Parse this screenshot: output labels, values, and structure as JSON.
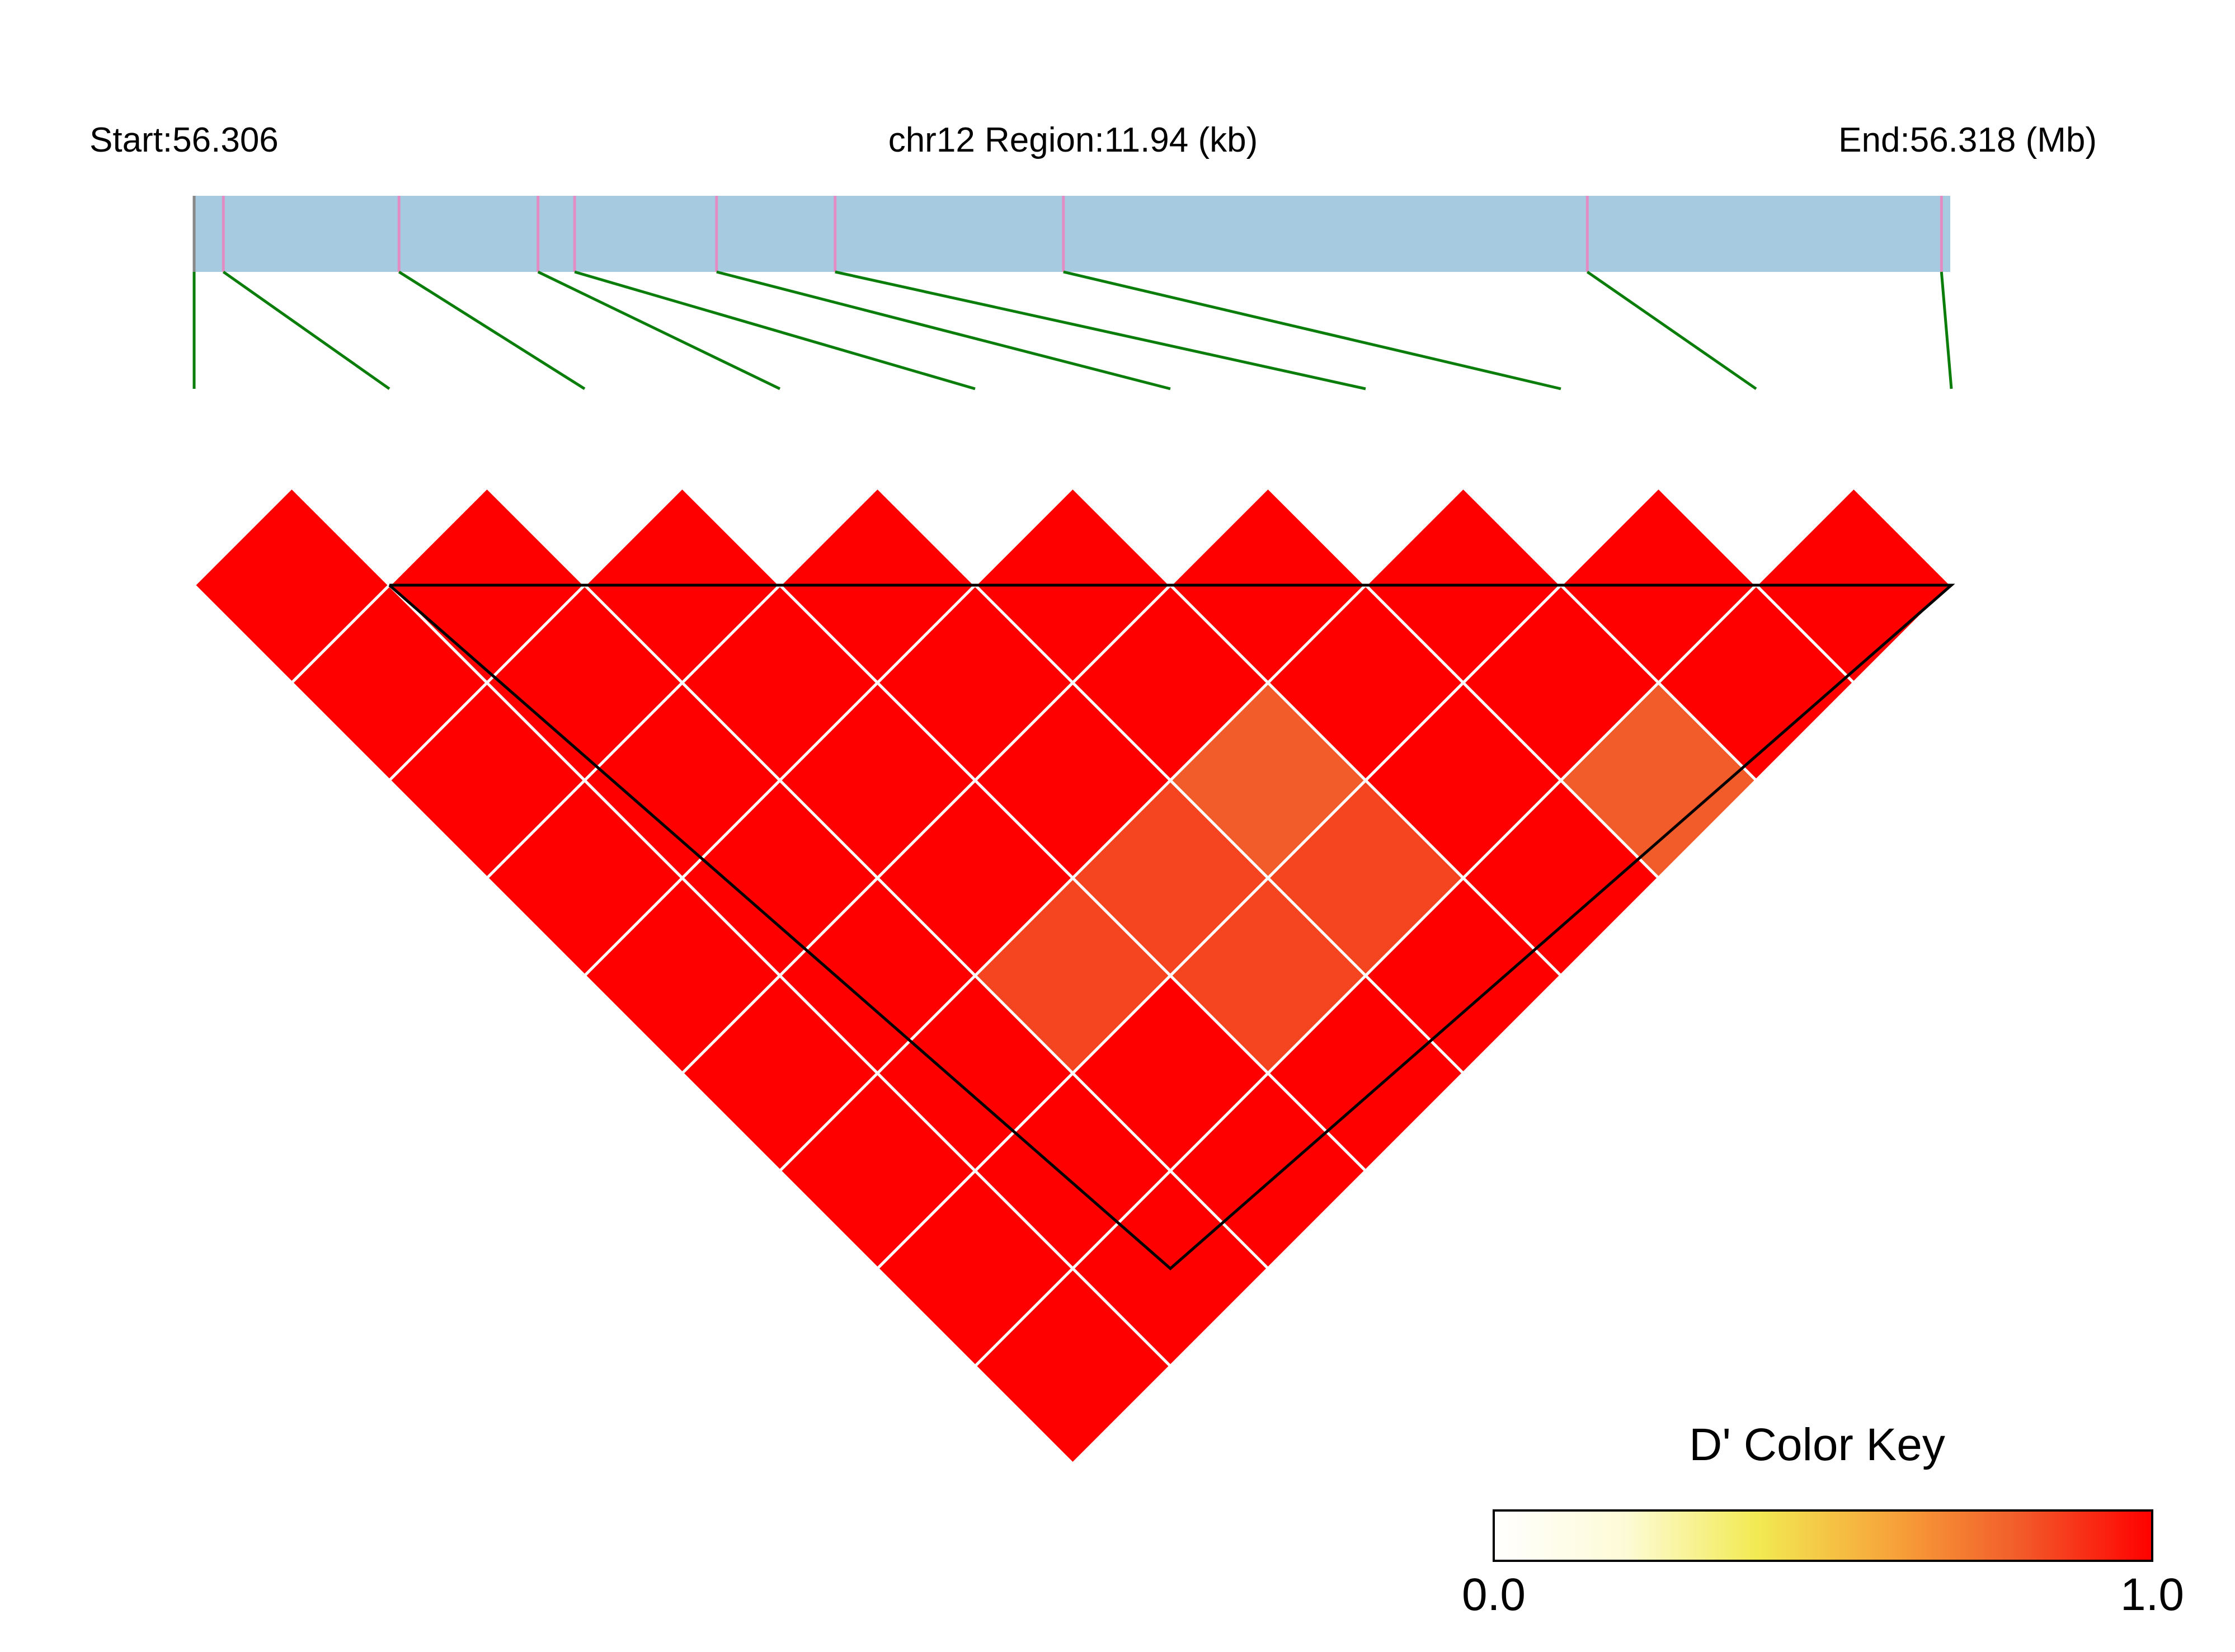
{
  "chart_data": {
    "type": "heatmap",
    "subtype": "LD triangle (pairwise D')",
    "header": {
      "start_label": "Start:56.306",
      "region_label": "chr12 Region:11.94 (kb)",
      "end_label": "End:56.318 (Mb)"
    },
    "region": {
      "chrom": "chr12",
      "start_mb": 56.306,
      "end_mb": 56.318,
      "length_kb": 11.94
    },
    "snp_positions_mb": [
      56.306,
      56.3062,
      56.3074,
      56.30835,
      56.3086,
      56.30957,
      56.31038,
      56.31194,
      56.31552,
      56.31794
    ],
    "d_prime": [
      [
        1,
        1,
        1,
        1,
        1,
        1,
        1,
        1,
        1
      ],
      [
        1,
        1,
        1,
        1,
        1,
        1,
        1,
        1
      ],
      [
        1,
        1,
        1,
        1,
        0.8,
        1,
        0.8
      ],
      [
        1,
        1,
        1,
        0.85,
        0.85,
        1
      ],
      [
        1,
        1,
        0.85,
        0.85,
        1
      ],
      [
        1,
        1,
        1,
        1
      ],
      [
        1,
        1,
        1
      ],
      [
        1,
        1
      ],
      [
        1
      ]
    ],
    "d_prime_note": "row k = SNP pairs (i, i+k+1), i from left",
    "color_key": {
      "title": "D' Color Key",
      "min_label": "0.0",
      "max_label": "1.0",
      "range": [
        0,
        1
      ],
      "stops": [
        "#ffffff",
        "#fdfbd6",
        "#f2ea52",
        "#f7a53a",
        "#f25b2a",
        "#ff0000"
      ]
    },
    "colors": {
      "region_bar": "#a6cbe0",
      "snp_tick": "#e38cc4",
      "connector": "#0a7d0a",
      "cell_border": "#ffffff",
      "block_outline": "#000000"
    },
    "block": {
      "first_snp": 2,
      "last_snp": 10
    }
  }
}
